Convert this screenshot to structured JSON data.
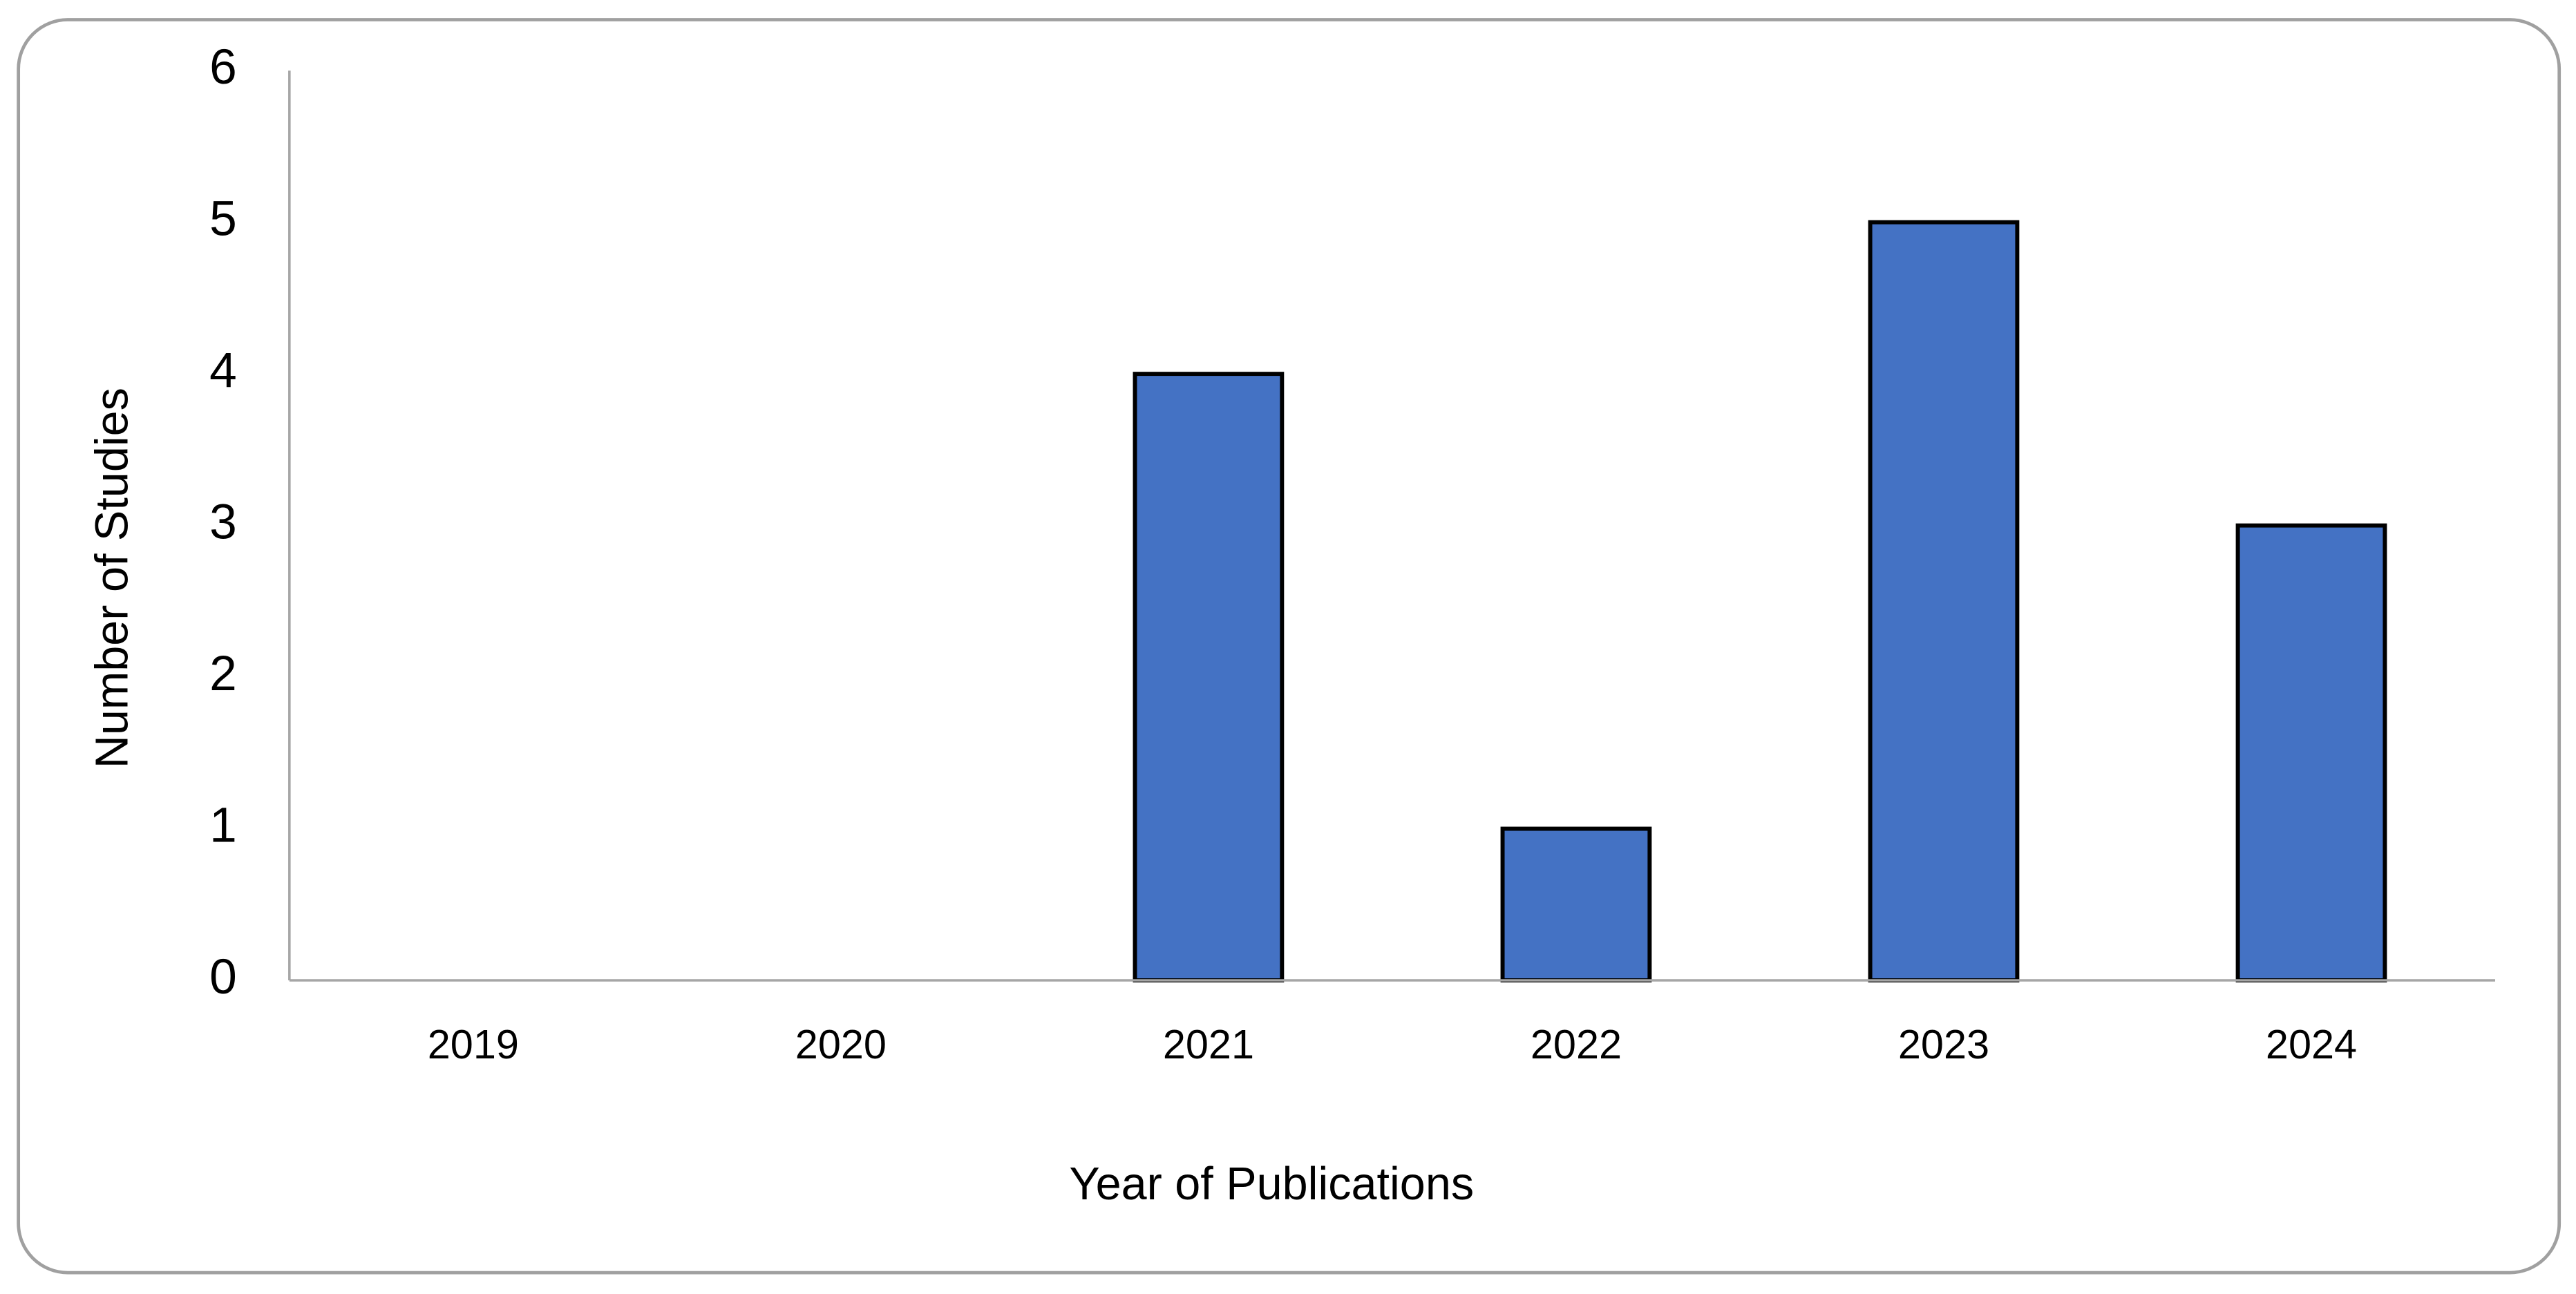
{
  "chart_data": {
    "type": "bar",
    "x_label": "Year of Publications",
    "y_label": "Number of Studies",
    "categories": [
      "2019",
      "2020",
      "2021",
      "2022",
      "2023",
      "2024"
    ],
    "values": [
      0,
      0,
      4,
      1,
      5,
      3
    ],
    "color": "#4472c4",
    "ylim": [
      0,
      6
    ],
    "yticks": [
      0,
      1,
      2,
      3,
      4,
      5,
      6
    ],
    "grid": false
  }
}
